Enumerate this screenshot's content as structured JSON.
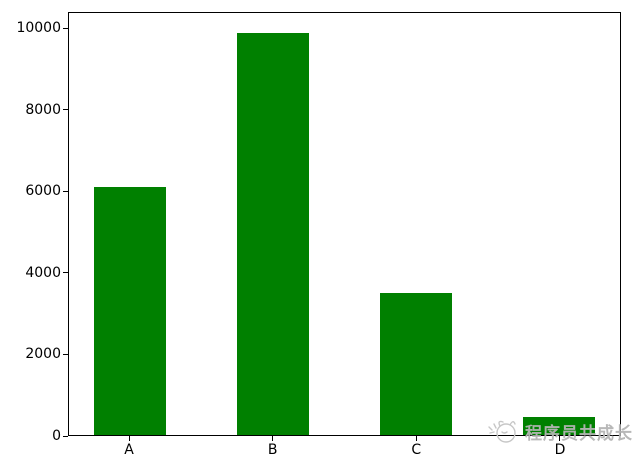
{
  "figure": {
    "background": "#ffffff",
    "axis_color": "#000000"
  },
  "chart_data": {
    "type": "bar",
    "categories": [
      "A",
      "B",
      "C",
      "D"
    ],
    "values": [
      6100,
      9900,
      3500,
      450
    ],
    "title": "",
    "xlabel": "",
    "ylabel": "",
    "bar_color": "#008000",
    "ylim": [
      0,
      10395
    ],
    "yticks": [
      0,
      2000,
      4000,
      6000,
      8000,
      10000
    ],
    "grid": false,
    "legend": null,
    "layout": {
      "x_units_total": 3.85,
      "x_first_center_units": 0.425,
      "bar_width_units": 0.5
    }
  },
  "watermark": {
    "text": "程序员共成长",
    "color": "#b5b5b5",
    "icon": "doodle-logo-icon"
  }
}
